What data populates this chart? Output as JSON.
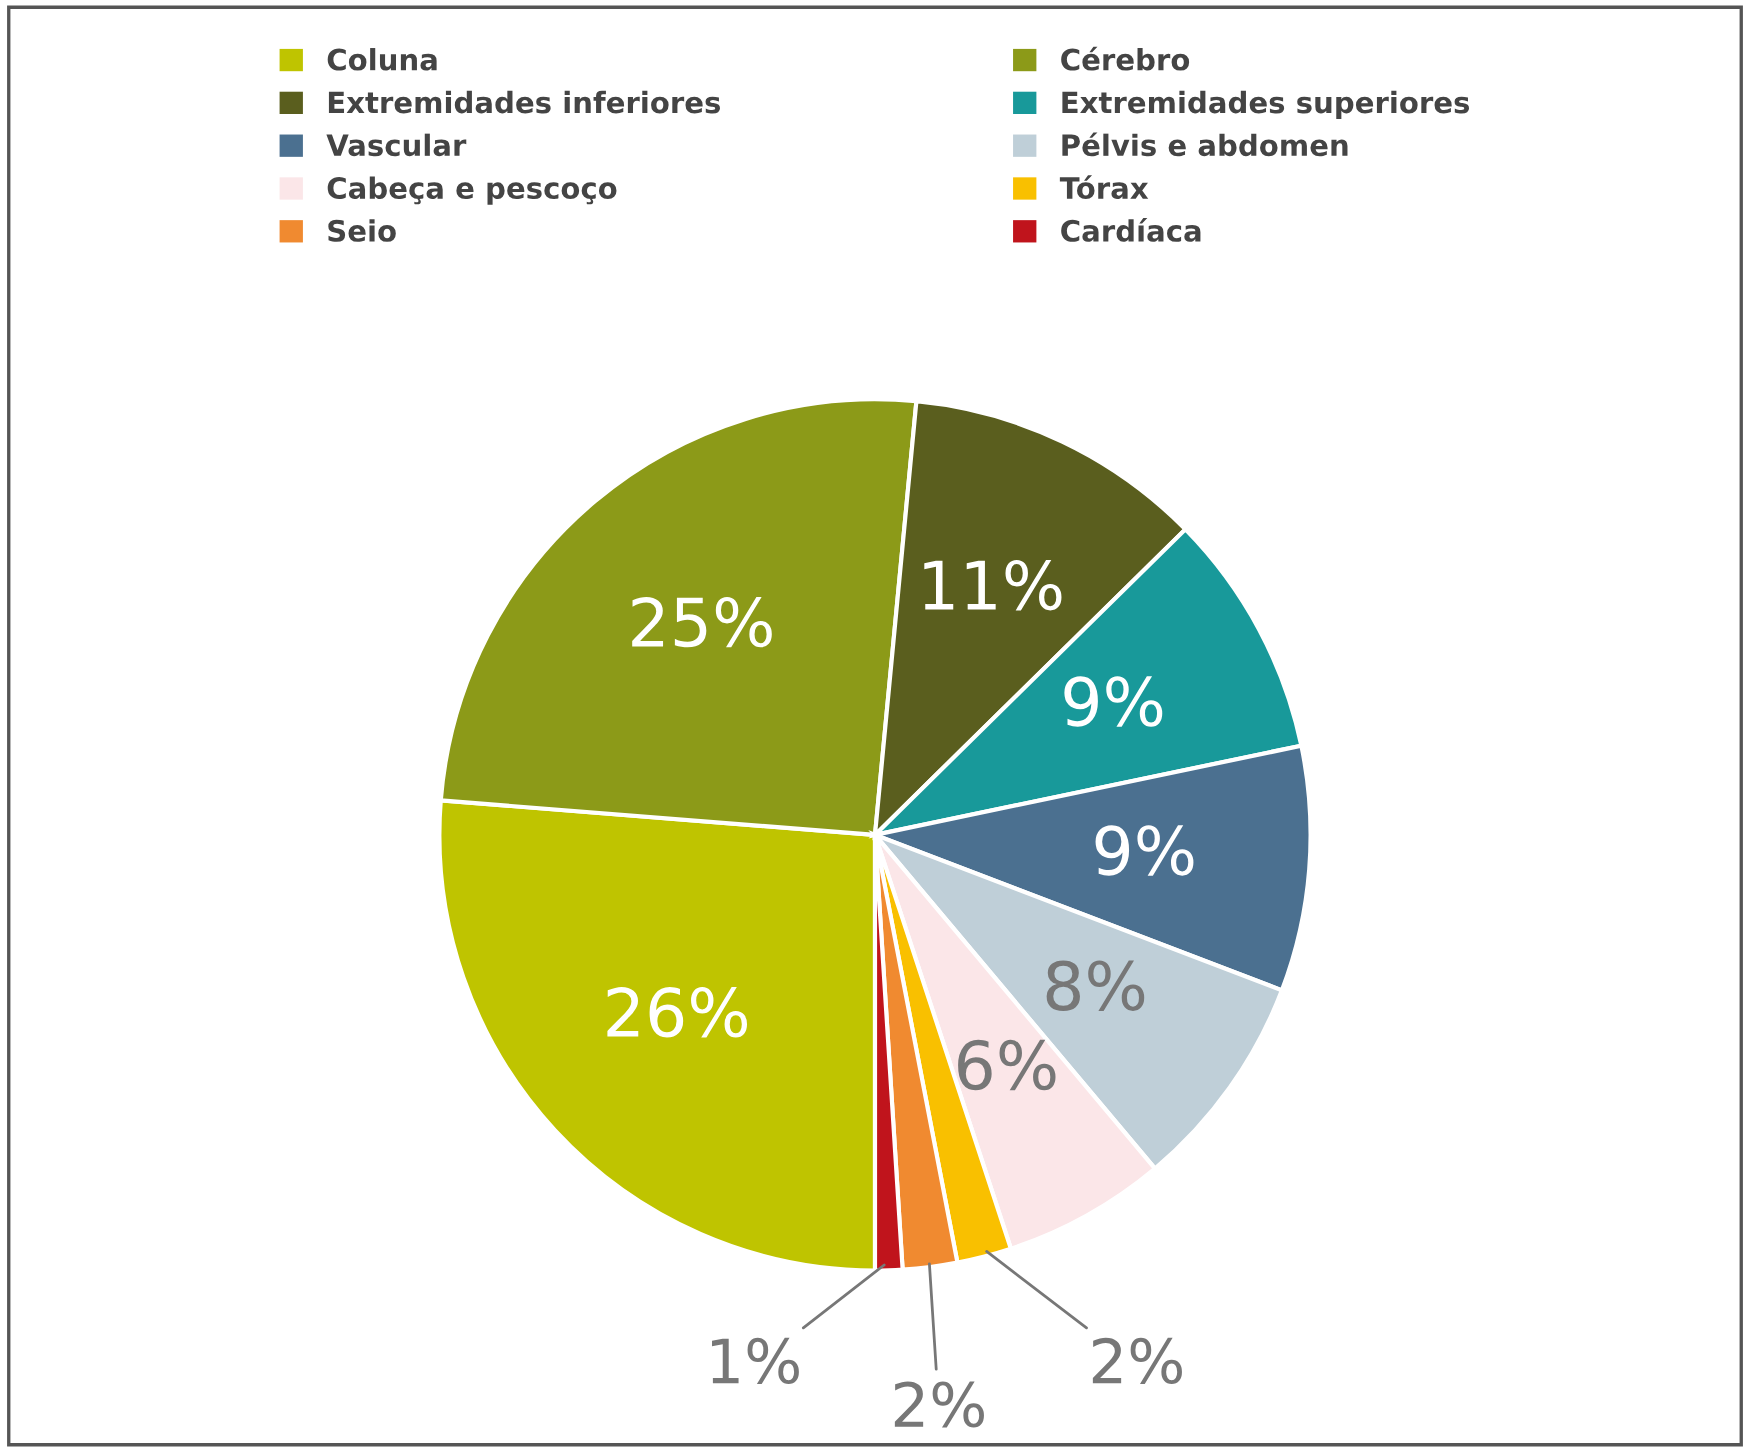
{
  "chart_data": {
    "type": "pie",
    "categories": [
      "Coluna",
      "Cérebro",
      "Extremidades inferiores",
      "Extremidades superiores",
      "Vascular",
      "Pélvis e abdomen",
      "Cabeça e pescoço",
      "Tórax",
      "Seio",
      "Cardíaca"
    ],
    "values": [
      26,
      25,
      11,
      9,
      9,
      8,
      6,
      2,
      2,
      1
    ],
    "value_labels": [
      "26%",
      "25%",
      "11%",
      "9%",
      "9%",
      "8%",
      "6%",
      "2%",
      "2%",
      "1%"
    ],
    "colors": [
      "#bfc400",
      "#8c9a18",
      "#5a5e1e",
      "#18999a",
      "#4b7090",
      "#bfcfd8",
      "#fbe6e8",
      "#f9c000",
      "#f08a30",
      "#c0141c"
    ],
    "legend": "top"
  }
}
